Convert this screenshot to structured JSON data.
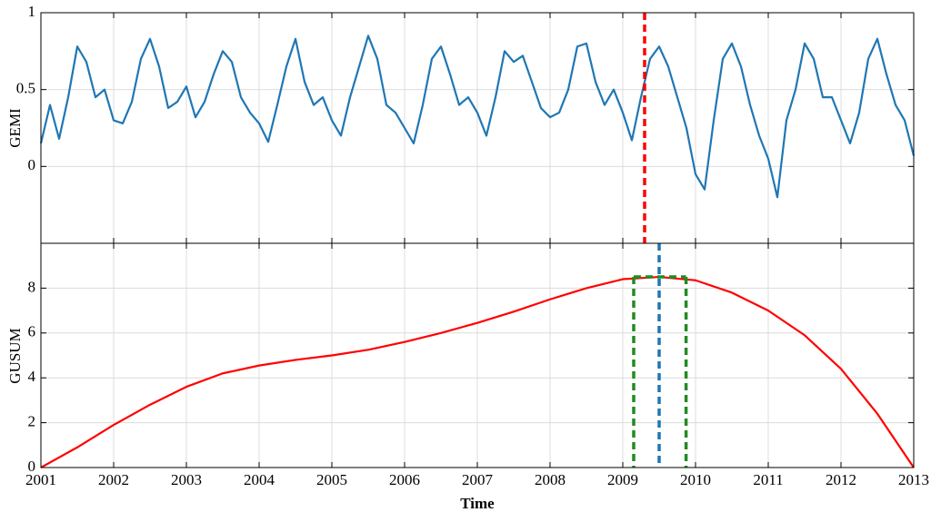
{
  "chart_data": [
    {
      "type": "line",
      "ylabel": "GEMI",
      "x": [
        2001,
        2001.125,
        2001.25,
        2001.375,
        2001.5,
        2001.625,
        2001.75,
        2001.875,
        2002,
        2002.125,
        2002.25,
        2002.375,
        2002.5,
        2002.625,
        2002.75,
        2002.875,
        2003,
        2003.125,
        2003.25,
        2003.375,
        2003.5,
        2003.625,
        2003.75,
        2003.875,
        2004,
        2004.125,
        2004.25,
        2004.375,
        2004.5,
        2004.625,
        2004.75,
        2004.875,
        2005,
        2005.125,
        2005.25,
        2005.375,
        2005.5,
        2005.625,
        2005.75,
        2005.875,
        2006,
        2006.125,
        2006.25,
        2006.375,
        2006.5,
        2006.625,
        2006.75,
        2006.875,
        2007,
        2007.125,
        2007.25,
        2007.375,
        2007.5,
        2007.625,
        2007.75,
        2007.875,
        2008,
        2008.125,
        2008.25,
        2008.375,
        2008.5,
        2008.625,
        2008.75,
        2008.875,
        2009,
        2009.125,
        2009.25,
        2009.375,
        2009.5,
        2009.625,
        2009.75,
        2009.875,
        2010,
        2010.125,
        2010.25,
        2010.375,
        2010.5,
        2010.625,
        2010.75,
        2010.875,
        2011,
        2011.125,
        2011.25,
        2011.375,
        2011.5,
        2011.625,
        2011.75,
        2011.875,
        2012,
        2012.125,
        2012.25,
        2012.375,
        2012.5,
        2012.625,
        2012.75,
        2012.875,
        2013
      ],
      "series": [
        {
          "color": "#1f77b4",
          "values": [
            0.15,
            0.4,
            0.18,
            0.45,
            0.78,
            0.68,
            0.45,
            0.5,
            0.3,
            0.28,
            0.42,
            0.7,
            0.83,
            0.65,
            0.38,
            0.42,
            0.52,
            0.32,
            0.42,
            0.6,
            0.75,
            0.68,
            0.45,
            0.35,
            0.28,
            0.16,
            0.4,
            0.65,
            0.83,
            0.55,
            0.4,
            0.45,
            0.3,
            0.2,
            0.45,
            0.65,
            0.85,
            0.7,
            0.4,
            0.35,
            0.25,
            0.15,
            0.4,
            0.7,
            0.78,
            0.6,
            0.4,
            0.45,
            0.35,
            0.2,
            0.45,
            0.75,
            0.68,
            0.72,
            0.55,
            0.38,
            0.32,
            0.35,
            0.5,
            0.78,
            0.8,
            0.55,
            0.4,
            0.5,
            0.35,
            0.17,
            0.45,
            0.7,
            0.78,
            0.65,
            0.45,
            0.25,
            -0.05,
            -0.15,
            0.3,
            0.7,
            0.8,
            0.65,
            0.4,
            0.2,
            0.05,
            -0.2,
            0.3,
            0.5,
            0.8,
            0.7,
            0.45,
            0.45,
            0.3,
            0.15,
            0.35,
            0.7,
            0.83,
            0.6,
            0.4,
            0.3,
            0.07
          ]
        }
      ],
      "ylim": [
        -0.5,
        1
      ],
      "yticks": [
        0,
        0.5,
        1
      ],
      "xlim": [
        2001,
        2013
      ],
      "grid": true,
      "markers": [
        {
          "x": 2009.3,
          "color": "#ff0000"
        }
      ]
    },
    {
      "type": "line",
      "ylabel": "GUSUM",
      "xlabel": "Time",
      "x": [
        2001,
        2001.5,
        2002,
        2002.5,
        2003,
        2003.5,
        2004,
        2004.5,
        2005,
        2005.5,
        2006,
        2006.5,
        2007,
        2007.5,
        2008,
        2008.5,
        2009,
        2009.5,
        2010,
        2010.5,
        2011,
        2011.5,
        2012,
        2012.5,
        2013
      ],
      "series": [
        {
          "color": "#ff0000",
          "values": [
            0,
            0.9,
            1.9,
            2.8,
            3.6,
            4.2,
            4.55,
            4.8,
            5.0,
            5.25,
            5.6,
            6.0,
            6.45,
            6.95,
            7.5,
            8.0,
            8.4,
            8.5,
            8.35,
            7.8,
            7.0,
            5.9,
            4.4,
            2.4,
            0
          ]
        }
      ],
      "ylim": [
        0,
        10
      ],
      "yticks": [
        0,
        2,
        4,
        6,
        8
      ],
      "xlim": [
        2001,
        2013
      ],
      "xticks": [
        2001,
        2002,
        2003,
        2004,
        2005,
        2006,
        2007,
        2008,
        2009,
        2010,
        2011,
        2012,
        2013
      ],
      "grid": true,
      "markers": [
        {
          "x": 2009.5,
          "color": "#1f77b4"
        }
      ],
      "interval": {
        "x": [
          2009.15,
          2009.87
        ],
        "y": 8.5,
        "color": "#228b22"
      }
    }
  ]
}
